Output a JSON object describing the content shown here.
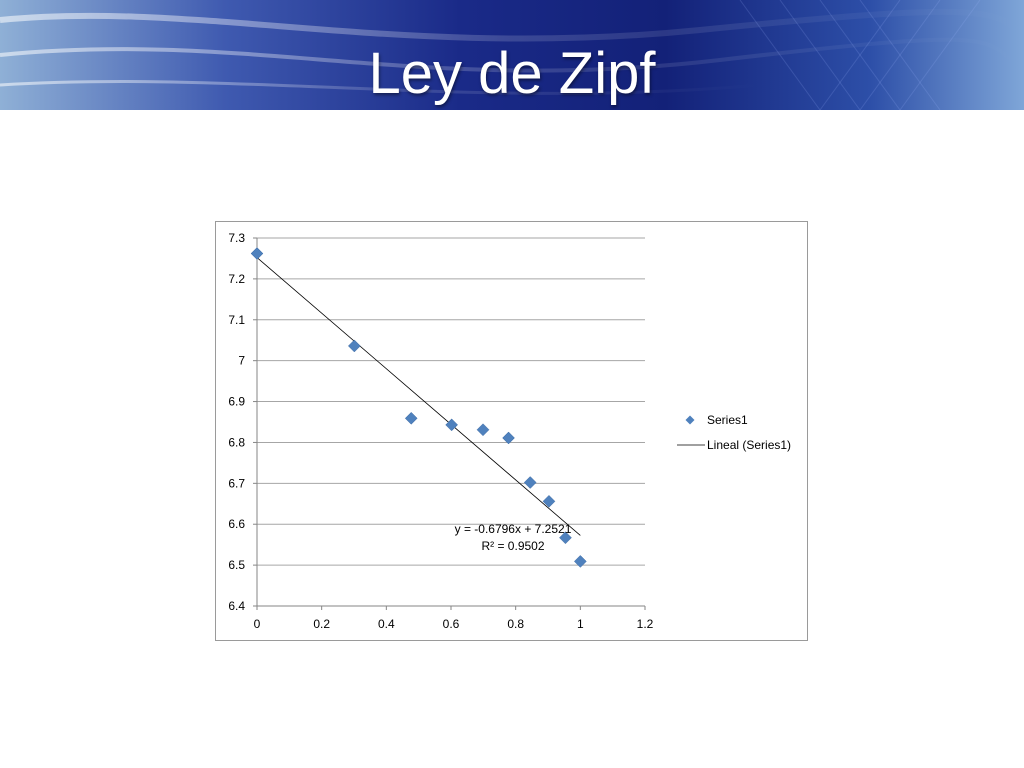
{
  "slide": {
    "title": "Ley de Zipf"
  },
  "colors": {
    "marker": "#4f81bd",
    "trendline": "#000000",
    "grid": "#a6a6a6"
  },
  "chart_data": {
    "type": "scatter",
    "xlim": [
      0,
      1.2
    ],
    "ylim": [
      6.4,
      7.3
    ],
    "x_ticks": [
      "0",
      "0.2",
      "0.4",
      "0.6",
      "0.8",
      "1",
      "1.2"
    ],
    "y_ticks": [
      "6.4",
      "6.5",
      "6.6",
      "6.7",
      "6.8",
      "6.9",
      "7",
      "7.1",
      "7.2",
      "7.3"
    ],
    "grid": "horizontal",
    "legend_position": "right",
    "series": [
      {
        "name": "Series1",
        "marker": "diamond",
        "points": [
          [
            0,
            7.262
          ],
          [
            0.301,
            7.036
          ],
          [
            0.477,
            6.859
          ],
          [
            0.602,
            6.843
          ],
          [
            0.699,
            6.831
          ],
          [
            0.778,
            6.811
          ],
          [
            0.845,
            6.702
          ],
          [
            0.903,
            6.656
          ],
          [
            0.954,
            6.567
          ],
          [
            1.0,
            6.509
          ]
        ]
      }
    ],
    "trendline": {
      "name": "Lineal (Series1)",
      "slope": -0.6796,
      "intercept": 7.2521,
      "x_range": [
        0,
        1.0
      ],
      "equation_label": "y = -0.6796x + 7.2521",
      "r2_label": "R² = 0.9502"
    }
  }
}
